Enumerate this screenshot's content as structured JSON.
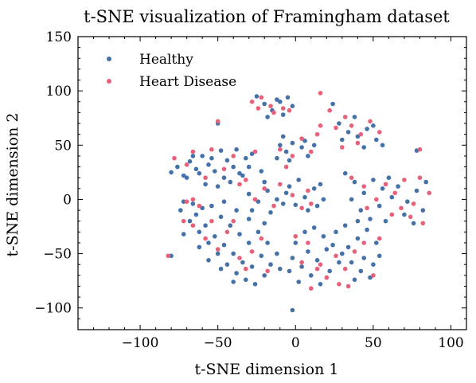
{
  "chart_data": {
    "type": "scatter",
    "title": "t-SNE visualization of Framingham dataset",
    "xlabel": "t-SNE dimension 1",
    "ylabel": "t-SNE dimension 2",
    "xlim": [
      -140,
      110
    ],
    "ylim": [
      -120,
      150
    ],
    "xticks": [
      -100,
      -50,
      0,
      50,
      100
    ],
    "yticks": [
      -100,
      -50,
      0,
      50,
      100,
      150
    ],
    "xtick_labels": [
      "−100",
      "−50",
      "0",
      "50",
      "100"
    ],
    "ytick_labels": [
      "−100",
      "−50",
      "0",
      "50",
      "100",
      "150"
    ],
    "legend_position": "top-left",
    "grid": false,
    "series": [
      {
        "name": "Healthy",
        "color": "#4472a8",
        "points": [
          [
            -80,
            25
          ],
          [
            -76,
            30
          ],
          [
            -72,
            22
          ],
          [
            -68,
            35
          ],
          [
            -64,
            28
          ],
          [
            -60,
            40
          ],
          [
            -56,
            32
          ],
          [
            -52,
            26
          ],
          [
            -48,
            45
          ],
          [
            -44,
            36
          ],
          [
            -40,
            30
          ],
          [
            -36,
            24
          ],
          [
            -32,
            38
          ],
          [
            -28,
            42
          ],
          [
            -70,
            20
          ],
          [
            -62,
            24
          ],
          [
            -54,
            38
          ],
          [
            -46,
            20
          ],
          [
            -38,
            46
          ],
          [
            -30,
            30
          ],
          [
            -58,
            14
          ],
          [
            -50,
            12
          ],
          [
            -42,
            16
          ],
          [
            -34,
            22
          ],
          [
            -66,
            40
          ],
          [
            -22,
            26
          ],
          [
            -25,
            95
          ],
          [
            -20,
            88
          ],
          [
            -15,
            82
          ],
          [
            -10,
            90
          ],
          [
            -5,
            94
          ],
          [
            -2,
            86
          ],
          [
            -18,
            76
          ],
          [
            -8,
            78
          ],
          [
            -12,
            92
          ],
          [
            -50,
            70
          ],
          [
            -10,
            50
          ],
          [
            -6,
            44
          ],
          [
            -2,
            52
          ],
          [
            4,
            48
          ],
          [
            8,
            40
          ],
          [
            -12,
            38
          ],
          [
            -4,
            36
          ],
          [
            6,
            54
          ],
          [
            12,
            50
          ],
          [
            -8,
            58
          ],
          [
            28,
            70
          ],
          [
            34,
            62
          ],
          [
            40,
            58
          ],
          [
            46,
            65
          ],
          [
            52,
            55
          ],
          [
            38,
            76
          ],
          [
            30,
            55
          ],
          [
            44,
            48
          ],
          [
            56,
            50
          ],
          [
            50,
            68
          ],
          [
            -30,
            5
          ],
          [
            -24,
            -2
          ],
          [
            -18,
            8
          ],
          [
            -12,
            0
          ],
          [
            -6,
            6
          ],
          [
            0,
            -5
          ],
          [
            6,
            2
          ],
          [
            12,
            10
          ],
          [
            18,
            0
          ],
          [
            -28,
            -10
          ],
          [
            -16,
            -12
          ],
          [
            -4,
            12
          ],
          [
            8,
            -10
          ],
          [
            16,
            14
          ],
          [
            -20,
            16
          ],
          [
            2,
            18
          ],
          [
            14,
            -6
          ],
          [
            -8,
            -4
          ],
          [
            32,
            24
          ],
          [
            38,
            16
          ],
          [
            44,
            6
          ],
          [
            50,
            18
          ],
          [
            56,
            10
          ],
          [
            62,
            2
          ],
          [
            36,
            0
          ],
          [
            42,
            -10
          ],
          [
            48,
            -18
          ],
          [
            54,
            -6
          ],
          [
            60,
            20
          ],
          [
            66,
            12
          ],
          [
            72,
            -2
          ],
          [
            78,
            8
          ],
          [
            84,
            16
          ],
          [
            70,
            -14
          ],
          [
            76,
            -22
          ],
          [
            82,
            -10
          ],
          [
            58,
            -20
          ],
          [
            40,
            -20
          ],
          [
            -74,
            -10
          ],
          [
            -68,
            -20
          ],
          [
            -62,
            -30
          ],
          [
            -56,
            -40
          ],
          [
            -50,
            -50
          ],
          [
            -44,
            -60
          ],
          [
            -38,
            -68
          ],
          [
            -32,
            -74
          ],
          [
            -26,
            -78
          ],
          [
            -20,
            -70
          ],
          [
            -72,
            -2
          ],
          [
            -64,
            -14
          ],
          [
            -58,
            -24
          ],
          [
            -52,
            -34
          ],
          [
            -46,
            -42
          ],
          [
            -40,
            -50
          ],
          [
            -34,
            -58
          ],
          [
            -28,
            -62
          ],
          [
            -22,
            -52
          ],
          [
            -16,
            -60
          ],
          [
            -66,
            -4
          ],
          [
            -60,
            -8
          ],
          [
            -48,
            -16
          ],
          [
            -42,
            -24
          ],
          [
            -36,
            -32
          ],
          [
            -30,
            -40
          ],
          [
            -24,
            -30
          ],
          [
            -18,
            -40
          ],
          [
            -12,
            -50
          ],
          [
            -10,
            -64
          ],
          [
            -54,
            -6
          ],
          [
            -46,
            -2
          ],
          [
            -38,
            -10
          ],
          [
            -30,
            -18
          ],
          [
            -20,
            -22
          ],
          [
            -62,
            -44
          ],
          [
            -56,
            -56
          ],
          [
            -48,
            -64
          ],
          [
            -40,
            -76
          ],
          [
            -72,
            -32
          ],
          [
            0,
            -40
          ],
          [
            6,
            -30
          ],
          [
            12,
            -26
          ],
          [
            18,
            -34
          ],
          [
            24,
            -42
          ],
          [
            30,
            -50
          ],
          [
            36,
            -58
          ],
          [
            42,
            -66
          ],
          [
            48,
            -72
          ],
          [
            54,
            -52
          ],
          [
            -2,
            -54
          ],
          [
            4,
            -62
          ],
          [
            10,
            -70
          ],
          [
            16,
            -78
          ],
          [
            22,
            -66
          ],
          [
            28,
            -58
          ],
          [
            34,
            -44
          ],
          [
            40,
            -36
          ],
          [
            46,
            -28
          ],
          [
            52,
            -40
          ],
          [
            2,
            -76
          ],
          [
            8,
            -48
          ],
          [
            14,
            -56
          ],
          [
            20,
            -46
          ],
          [
            26,
            -30
          ],
          [
            32,
            -24
          ],
          [
            38,
            -74
          ],
          [
            44,
            -54
          ],
          [
            50,
            -60
          ],
          [
            -4,
            -66
          ],
          [
            -2,
            -102
          ],
          [
            -80,
            -52
          ],
          [
            78,
            45
          ],
          [
            24,
            88
          ]
        ]
      },
      {
        "name": "Heart Disease",
        "color": "#e8607a",
        "points": [
          [
            -78,
            38
          ],
          [
            -66,
            44
          ],
          [
            -58,
            20
          ],
          [
            -46,
            28
          ],
          [
            -40,
            40
          ],
          [
            -32,
            18
          ],
          [
            -26,
            44
          ],
          [
            -54,
            46
          ],
          [
            -70,
            32
          ],
          [
            -36,
            14
          ],
          [
            -28,
            90
          ],
          [
            -24,
            84
          ],
          [
            -16,
            86
          ],
          [
            -8,
            84
          ],
          [
            -22,
            94
          ],
          [
            -14,
            80
          ],
          [
            -4,
            82
          ],
          [
            -50,
            72
          ],
          [
            -10,
            46
          ],
          [
            -2,
            40
          ],
          [
            4,
            56
          ],
          [
            10,
            44
          ],
          [
            -6,
            30
          ],
          [
            26,
            66
          ],
          [
            32,
            76
          ],
          [
            36,
            68
          ],
          [
            42,
            60
          ],
          [
            48,
            72
          ],
          [
            54,
            62
          ],
          [
            30,
            48
          ],
          [
            40,
            52
          ],
          [
            16,
            98
          ],
          [
            22,
            82
          ],
          [
            14,
            60
          ],
          [
            -26,
            0
          ],
          [
            -20,
            10
          ],
          [
            -14,
            -6
          ],
          [
            -2,
            4
          ],
          [
            8,
            8
          ],
          [
            10,
            -4
          ],
          [
            -10,
            14
          ],
          [
            4,
            -8
          ],
          [
            36,
            20
          ],
          [
            44,
            12
          ],
          [
            52,
            0
          ],
          [
            58,
            14
          ],
          [
            64,
            6
          ],
          [
            70,
            18
          ],
          [
            76,
            -4
          ],
          [
            80,
            20
          ],
          [
            86,
            6
          ],
          [
            74,
            -16
          ],
          [
            82,
            -22
          ],
          [
            68,
            -8
          ],
          [
            62,
            -14
          ],
          [
            46,
            -8
          ],
          [
            -70,
            -2
          ],
          [
            -66,
            -24
          ],
          [
            -58,
            -36
          ],
          [
            -50,
            -46
          ],
          [
            -44,
            -30
          ],
          [
            -36,
            -54
          ],
          [
            -28,
            -48
          ],
          [
            -22,
            -36
          ],
          [
            -62,
            -6
          ],
          [
            -72,
            -20
          ],
          [
            -66,
            0
          ],
          [
            -54,
            -20
          ],
          [
            -40,
            -20
          ],
          [
            -32,
            -64
          ],
          [
            -18,
            -66
          ],
          [
            0,
            -34
          ],
          [
            8,
            -40
          ],
          [
            14,
            -64
          ],
          [
            20,
            -72
          ],
          [
            26,
            -52
          ],
          [
            32,
            -64
          ],
          [
            38,
            -48
          ],
          [
            44,
            -40
          ],
          [
            50,
            -70
          ],
          [
            10,
            -82
          ],
          [
            16,
            -60
          ],
          [
            28,
            -78
          ],
          [
            34,
            -80
          ],
          [
            4,
            -58
          ],
          [
            54,
            -36
          ],
          [
            -82,
            -52
          ],
          [
            80,
            46
          ],
          [
            16,
            68
          ]
        ]
      }
    ]
  }
}
